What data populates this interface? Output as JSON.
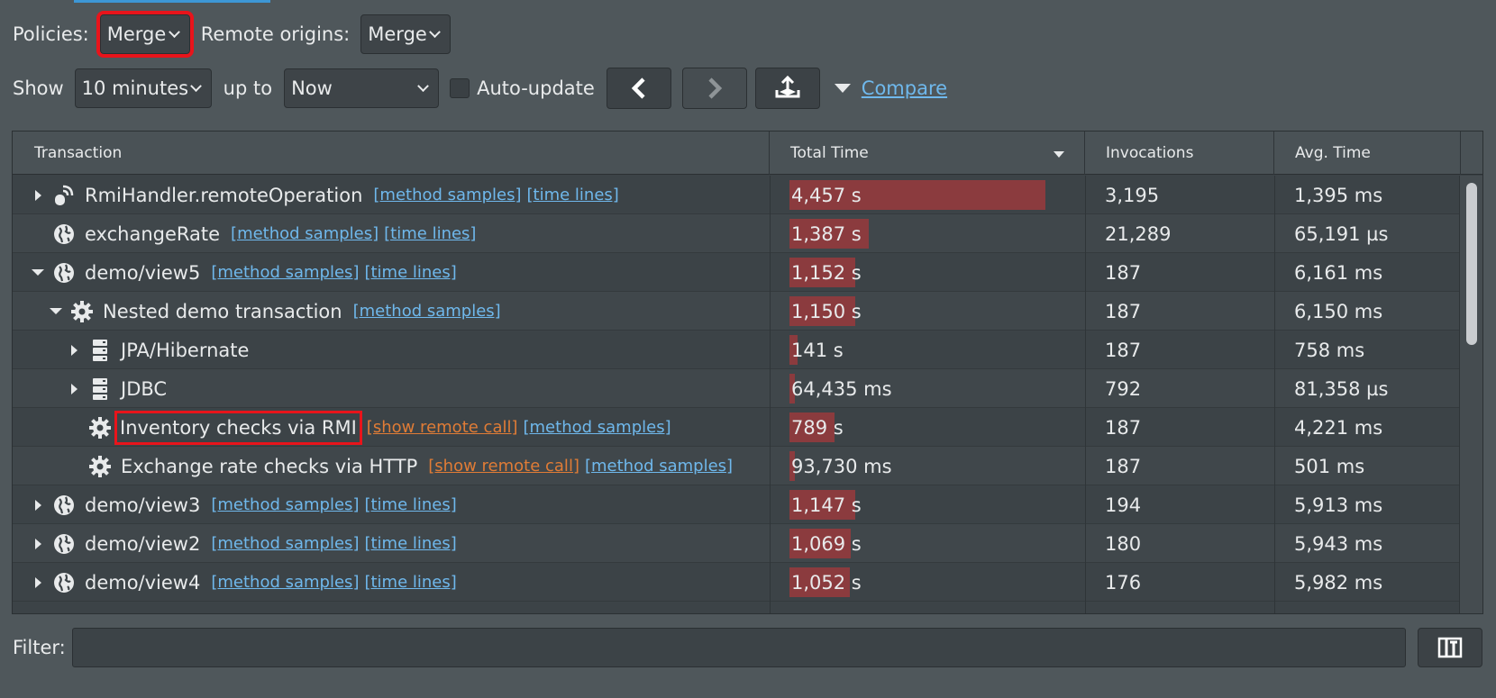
{
  "toolbar": {
    "policies_label": "Policies:",
    "policies_value": "Merge",
    "remote_origins_label": "Remote origins:",
    "remote_origins_value": "Merge",
    "show_label": "Show",
    "show_value": "10 minutes",
    "up_to_label": "up to",
    "up_to_value": "Now",
    "auto_update_label": "Auto-update",
    "compare_label": "Compare"
  },
  "table": {
    "columns": {
      "transaction": "Transaction",
      "total_time": "Total Time",
      "invocations": "Invocations",
      "avg_time": "Avg. Time"
    },
    "rows": [
      {
        "name": "RmiHandler.remoteOperation",
        "icon": "rmi-icon",
        "expander": "collapsed",
        "indent": 0,
        "links": [
          "[method samples]",
          "[time lines]"
        ],
        "remote_link": "",
        "total": "4,457 s",
        "bar_fraction": 1.0,
        "invocations": "3,195",
        "avg": "1,395 ms"
      },
      {
        "name": "exchangeRate",
        "icon": "globe-icon",
        "expander": "none",
        "indent": 0,
        "links": [
          "[method samples]",
          "[time lines]"
        ],
        "remote_link": "",
        "total": "1,387 s",
        "bar_fraction": 0.311,
        "invocations": "21,289",
        "avg": "65,191 µs"
      },
      {
        "name": "demo/view5",
        "icon": "globe-icon",
        "expander": "expanded",
        "indent": 0,
        "links": [
          "[method samples]",
          "[time lines]"
        ],
        "remote_link": "",
        "total": "1,152 s",
        "bar_fraction": 0.258,
        "invocations": "187",
        "avg": "6,161 ms"
      },
      {
        "name": "Nested demo transaction",
        "icon": "gear-icon",
        "expander": "expanded",
        "indent": 1,
        "links": [
          "[method samples]"
        ],
        "remote_link": "",
        "total": "1,150 s",
        "bar_fraction": 0.258,
        "invocations": "187",
        "avg": "6,150 ms"
      },
      {
        "name": "JPA/Hibernate",
        "icon": "database-icon",
        "expander": "collapsed",
        "indent": 2,
        "links": [],
        "remote_link": "",
        "total": "141 s",
        "bar_fraction": 0.032,
        "invocations": "187",
        "avg": "758 ms"
      },
      {
        "name": "JDBC",
        "icon": "database-icon",
        "expander": "collapsed",
        "indent": 2,
        "links": [],
        "remote_link": "",
        "total": "64,435 ms",
        "bar_fraction": 0.014,
        "invocations": "792",
        "avg": "81,358 µs"
      },
      {
        "name": "Inventory checks via RMI",
        "icon": "gear-icon",
        "expander": "none",
        "indent": 2,
        "links": [
          "[method samples]"
        ],
        "remote_link": "[show remote call]",
        "total": "789 s",
        "bar_fraction": 0.177,
        "invocations": "187",
        "avg": "4,221 ms",
        "highlight": true
      },
      {
        "name": "Exchange rate checks via HTTP",
        "icon": "gear-icon",
        "expander": "none",
        "indent": 2,
        "links": [
          "[method samples]"
        ],
        "remote_link": "[show remote call]",
        "total": "93,730 ms",
        "bar_fraction": 0.021,
        "invocations": "187",
        "avg": "501 ms"
      },
      {
        "name": "demo/view3",
        "icon": "globe-icon",
        "expander": "collapsed",
        "indent": 0,
        "links": [
          "[method samples]",
          "[time lines]"
        ],
        "remote_link": "",
        "total": "1,147 s",
        "bar_fraction": 0.257,
        "invocations": "194",
        "avg": "5,913 ms"
      },
      {
        "name": "demo/view2",
        "icon": "globe-icon",
        "expander": "collapsed",
        "indent": 0,
        "links": [
          "[method samples]",
          "[time lines]"
        ],
        "remote_link": "",
        "total": "1,069 s",
        "bar_fraction": 0.24,
        "invocations": "180",
        "avg": "5,943 ms"
      },
      {
        "name": "demo/view4",
        "icon": "globe-icon",
        "expander": "collapsed",
        "indent": 0,
        "links": [
          "[method samples]",
          "[time lines]"
        ],
        "remote_link": "",
        "total": "1,052 s",
        "bar_fraction": 0.236,
        "invocations": "176",
        "avg": "5,982 ms"
      }
    ]
  },
  "filter": {
    "label": "Filter:",
    "value": ""
  }
}
